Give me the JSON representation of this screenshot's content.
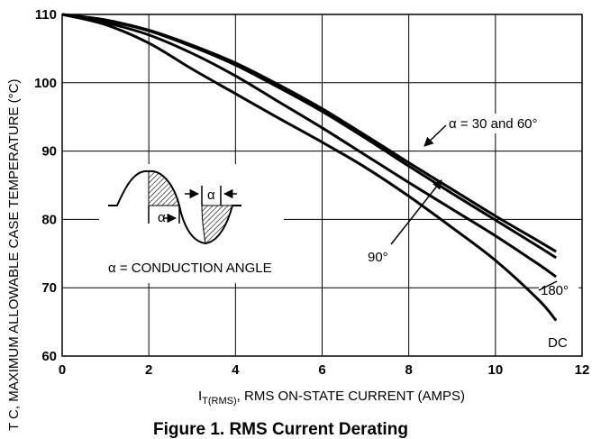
{
  "chart_data": {
    "type": "line",
    "title": "Figure 1. RMS Current Derating",
    "xlabel_main": "I",
    "xlabel_sub": "T(RMS)",
    "xlabel_rest": ", RMS ON-STATE CURRENT (AMPS)",
    "ylabel": "T C, MAXIMUM ALLOWABLE CASE TEMPERATURE (°C)",
    "xlim": [
      0,
      12
    ],
    "ylim": [
      60,
      110
    ],
    "x_ticks": [
      0,
      2,
      4,
      6,
      8,
      10,
      12
    ],
    "y_ticks": [
      60,
      70,
      80,
      90,
      100,
      110
    ],
    "grid": true,
    "series": [
      {
        "name": "α = 30 and 60°",
        "x": [
          0,
          1,
          2,
          3,
          4,
          5,
          6,
          7,
          8,
          9,
          10,
          11,
          11.4
        ],
        "y": [
          110,
          109.2,
          107.7,
          105.5,
          102.9,
          99.7,
          96.2,
          92.3,
          88.3,
          84.4,
          80.5,
          76.8,
          75.3
        ]
      },
      {
        "name": "90°",
        "x": [
          0,
          1,
          2,
          3,
          4,
          5,
          6,
          7,
          8,
          9,
          10,
          11,
          11.4
        ],
        "y": [
          110,
          109.1,
          107.6,
          105.3,
          102.6,
          99.3,
          95.8,
          91.9,
          87.8,
          83.8,
          79.9,
          76.0,
          74.4
        ]
      },
      {
        "name": "180°",
        "x": [
          0,
          1,
          2,
          3,
          4,
          5,
          6,
          7,
          8,
          9,
          10,
          11,
          11.4
        ],
        "y": [
          110,
          108.8,
          107.0,
          104.3,
          101.0,
          97.2,
          93.4,
          89.4,
          85.4,
          81.5,
          77.6,
          73.4,
          71.6
        ]
      },
      {
        "name": "DC",
        "x": [
          0,
          1,
          2,
          3,
          4,
          5,
          6,
          7,
          8,
          9,
          10,
          11,
          11.4
        ],
        "y": [
          110,
          108.5,
          105.8,
          102.0,
          98.4,
          94.8,
          91.3,
          87.6,
          83.4,
          78.8,
          74.0,
          68.2,
          65.2
        ]
      }
    ],
    "annotations": {
      "alpha_30_60": "α = 30 and 60°",
      "label_90": "90°",
      "label_180": "180°",
      "label_dc": "DC",
      "conduction": "α = CONDUCTION ANGLE",
      "alpha_small_1": "α",
      "alpha_small_2": "α"
    }
  }
}
